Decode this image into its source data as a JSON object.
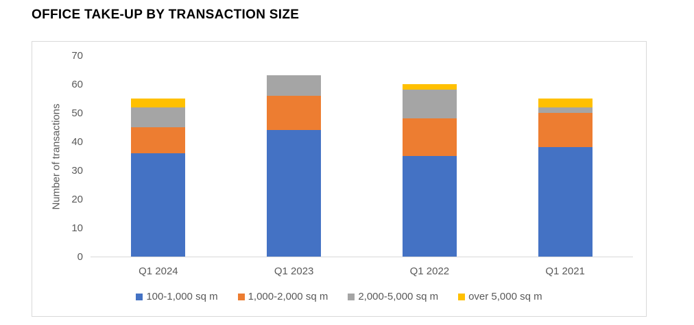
{
  "ui": {
    "colors": {
      "series_blue": "#4472C4",
      "series_orange": "#ED7D31",
      "series_gray": "#A5A5A5",
      "series_yellow": "#FFC000",
      "axis_line": "#D9D9D9",
      "frame_border": "#D9D9D9",
      "axis_text": "#595959",
      "title_text": "#000000",
      "background": "#FFFFFF"
    }
  },
  "chart_data": {
    "type": "bar",
    "stacked": true,
    "title": "OFFICE TAKE-UP BY TRANSACTION SIZE",
    "categories": [
      "Q1 2024",
      "Q1 2023",
      "Q1 2022",
      "Q1 2021"
    ],
    "series": [
      {
        "name": "100-1,000 sq m",
        "color": "#4472C4",
        "values": [
          36,
          44,
          35,
          38
        ]
      },
      {
        "name": "1,000-2,000 sq m",
        "color": "#ED7D31",
        "values": [
          9,
          12,
          13,
          12
        ]
      },
      {
        "name": "2,000-5,000 sq m",
        "color": "#A5A5A5",
        "values": [
          7,
          7,
          10,
          2
        ]
      },
      {
        "name": "over 5,000 sq m",
        "color": "#FFC000",
        "values": [
          3,
          0,
          2,
          3
        ]
      }
    ],
    "totals": [
      55,
      63,
      60,
      55
    ],
    "xlabel": "",
    "ylabel": "Number of transactions",
    "ylim": [
      0,
      70
    ],
    "yticks": [
      0,
      10,
      20,
      30,
      40,
      50,
      60,
      70
    ],
    "grid": false,
    "legend_position": "bottom"
  }
}
